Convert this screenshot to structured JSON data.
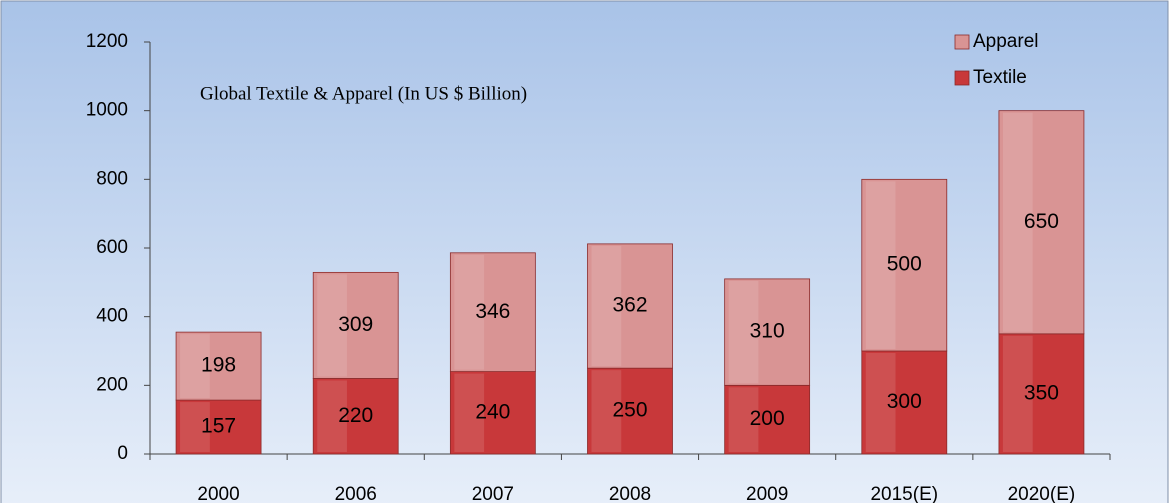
{
  "chart_data": {
    "type": "stacked_bar",
    "title": "Global Textile & Apparel (In US $ Billion)",
    "categories": [
      "2000",
      "2006",
      "2007",
      "2008",
      "2009",
      "2015(E)",
      "2020(E)"
    ],
    "series": [
      {
        "name": "Textile",
        "color": "#c8383a",
        "values": [
          157,
          220,
          240,
          250,
          200,
          300,
          350
        ]
      },
      {
        "name": "Apparel",
        "color": "#d99494",
        "values": [
          198,
          309,
          346,
          362,
          310,
          500,
          650
        ]
      }
    ],
    "ylim": [
      0,
      1200
    ],
    "yticks": [
      0,
      200,
      400,
      600,
      800,
      1000,
      1200
    ],
    "legend": "top-right"
  }
}
